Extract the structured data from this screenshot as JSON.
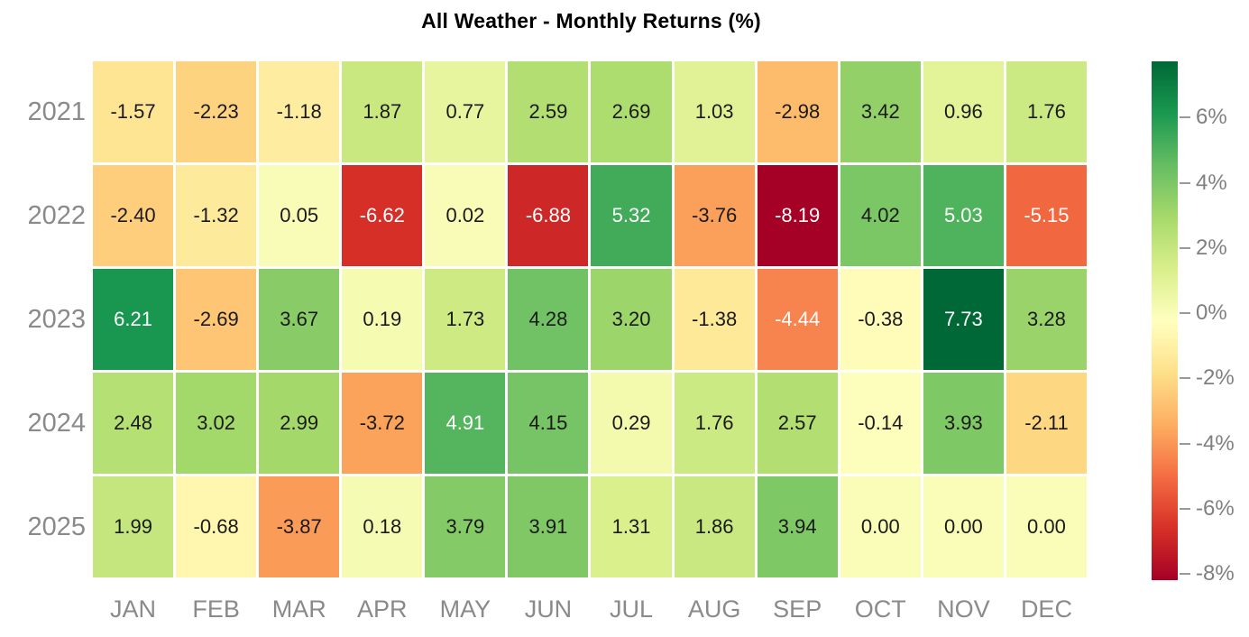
{
  "title": "All Weather - Monthly Returns (%)",
  "colors": {
    "background": "#ffffff",
    "title_text": "#000000",
    "axis_label_text": "#8a8a8a",
    "colorbar_tick_text": "#808080",
    "cell_text_dark": "#1a1a1a",
    "cell_text_light": "#ffffff",
    "colormap_name": "RdYlGn",
    "colormap_anchors": [
      "#a50026",
      "#d73027",
      "#f46d43",
      "#fdae61",
      "#fee08b",
      "#ffffbf",
      "#d9ef8b",
      "#a6d96a",
      "#66bd63",
      "#1a9850",
      "#006837"
    ]
  },
  "chart_data": {
    "type": "heatmap",
    "title": "All Weather - Monthly Returns (%)",
    "xlabel": "",
    "ylabel": "",
    "categories": [
      "JAN",
      "FEB",
      "MAR",
      "APR",
      "MAY",
      "JUN",
      "JUL",
      "AUG",
      "SEP",
      "OCT",
      "NOV",
      "DEC"
    ],
    "rows": [
      "2021",
      "2022",
      "2023",
      "2024",
      "2025"
    ],
    "series": [
      {
        "name": "2021",
        "values": [
          -1.57,
          -2.23,
          -1.18,
          1.87,
          0.77,
          2.59,
          2.69,
          1.03,
          -2.98,
          3.42,
          0.96,
          1.76
        ]
      },
      {
        "name": "2022",
        "values": [
          -2.4,
          -1.32,
          0.05,
          -6.62,
          0.02,
          -6.88,
          5.32,
          -3.76,
          -8.19,
          4.02,
          5.03,
          -5.15
        ]
      },
      {
        "name": "2023",
        "values": [
          6.21,
          -2.69,
          3.67,
          0.19,
          1.73,
          4.28,
          3.2,
          -1.38,
          -4.44,
          -0.38,
          7.73,
          3.28
        ]
      },
      {
        "name": "2024",
        "values": [
          2.48,
          3.02,
          2.99,
          -3.72,
          4.91,
          4.15,
          0.29,
          1.76,
          2.57,
          -0.14,
          3.93,
          -2.11
        ]
      },
      {
        "name": "2025",
        "values": [
          1.99,
          -0.68,
          -3.87,
          0.18,
          3.79,
          3.91,
          1.31,
          1.86,
          3.94,
          0.0,
          0.0,
          0.0
        ]
      }
    ],
    "value_decimals": 2,
    "vmin": -8.19,
    "vmax": 7.73,
    "colorbar": {
      "position": "right",
      "tick_labels": [
        "6%",
        "4%",
        "2%",
        "0%",
        "-2%",
        "-4%",
        "-6%",
        "-8%"
      ],
      "tick_values": [
        6,
        4,
        2,
        0,
        -2,
        -4,
        -6,
        -8
      ]
    },
    "grid": false,
    "legend": false
  }
}
